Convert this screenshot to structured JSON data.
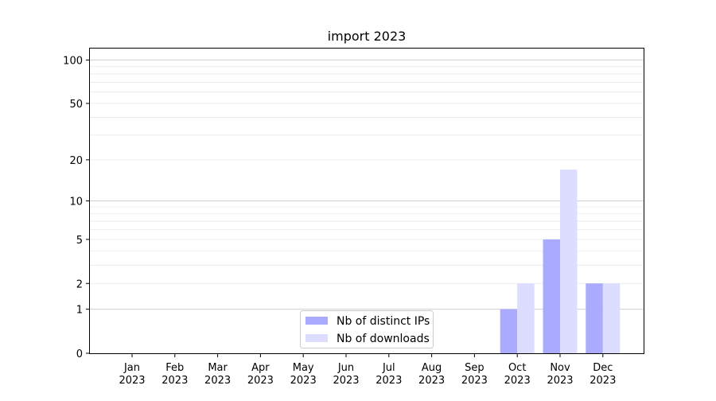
{
  "chart_data": {
    "type": "bar",
    "title": "import 2023",
    "xlabel": "",
    "ylabel": "",
    "y_scale": "symlog",
    "ylim": [
      0,
      120
    ],
    "y_ticks": [
      0,
      1,
      2,
      5,
      10,
      20,
      50,
      100
    ],
    "grid": "horizontal",
    "legend_position": "bottom-center",
    "categories": [
      [
        "Jan",
        "2023"
      ],
      [
        "Feb",
        "2023"
      ],
      [
        "Mar",
        "2023"
      ],
      [
        "Apr",
        "2023"
      ],
      [
        "May",
        "2023"
      ],
      [
        "Jun",
        "2023"
      ],
      [
        "Jul",
        "2023"
      ],
      [
        "Aug",
        "2023"
      ],
      [
        "Sep",
        "2023"
      ],
      [
        "Oct",
        "2023"
      ],
      [
        "Nov",
        "2023"
      ],
      [
        "Dec",
        "2023"
      ]
    ],
    "series": [
      {
        "name": "Nb of distinct IPs",
        "color": "#aaaaff",
        "values": [
          0,
          0,
          0,
          0,
          0,
          0,
          0,
          0,
          0,
          1,
          5,
          2
        ]
      },
      {
        "name": "Nb of downloads",
        "color": "#ddddff",
        "values": [
          0,
          0,
          0,
          0,
          0,
          0,
          0,
          0,
          0,
          2,
          17,
          2
        ]
      }
    ]
  }
}
